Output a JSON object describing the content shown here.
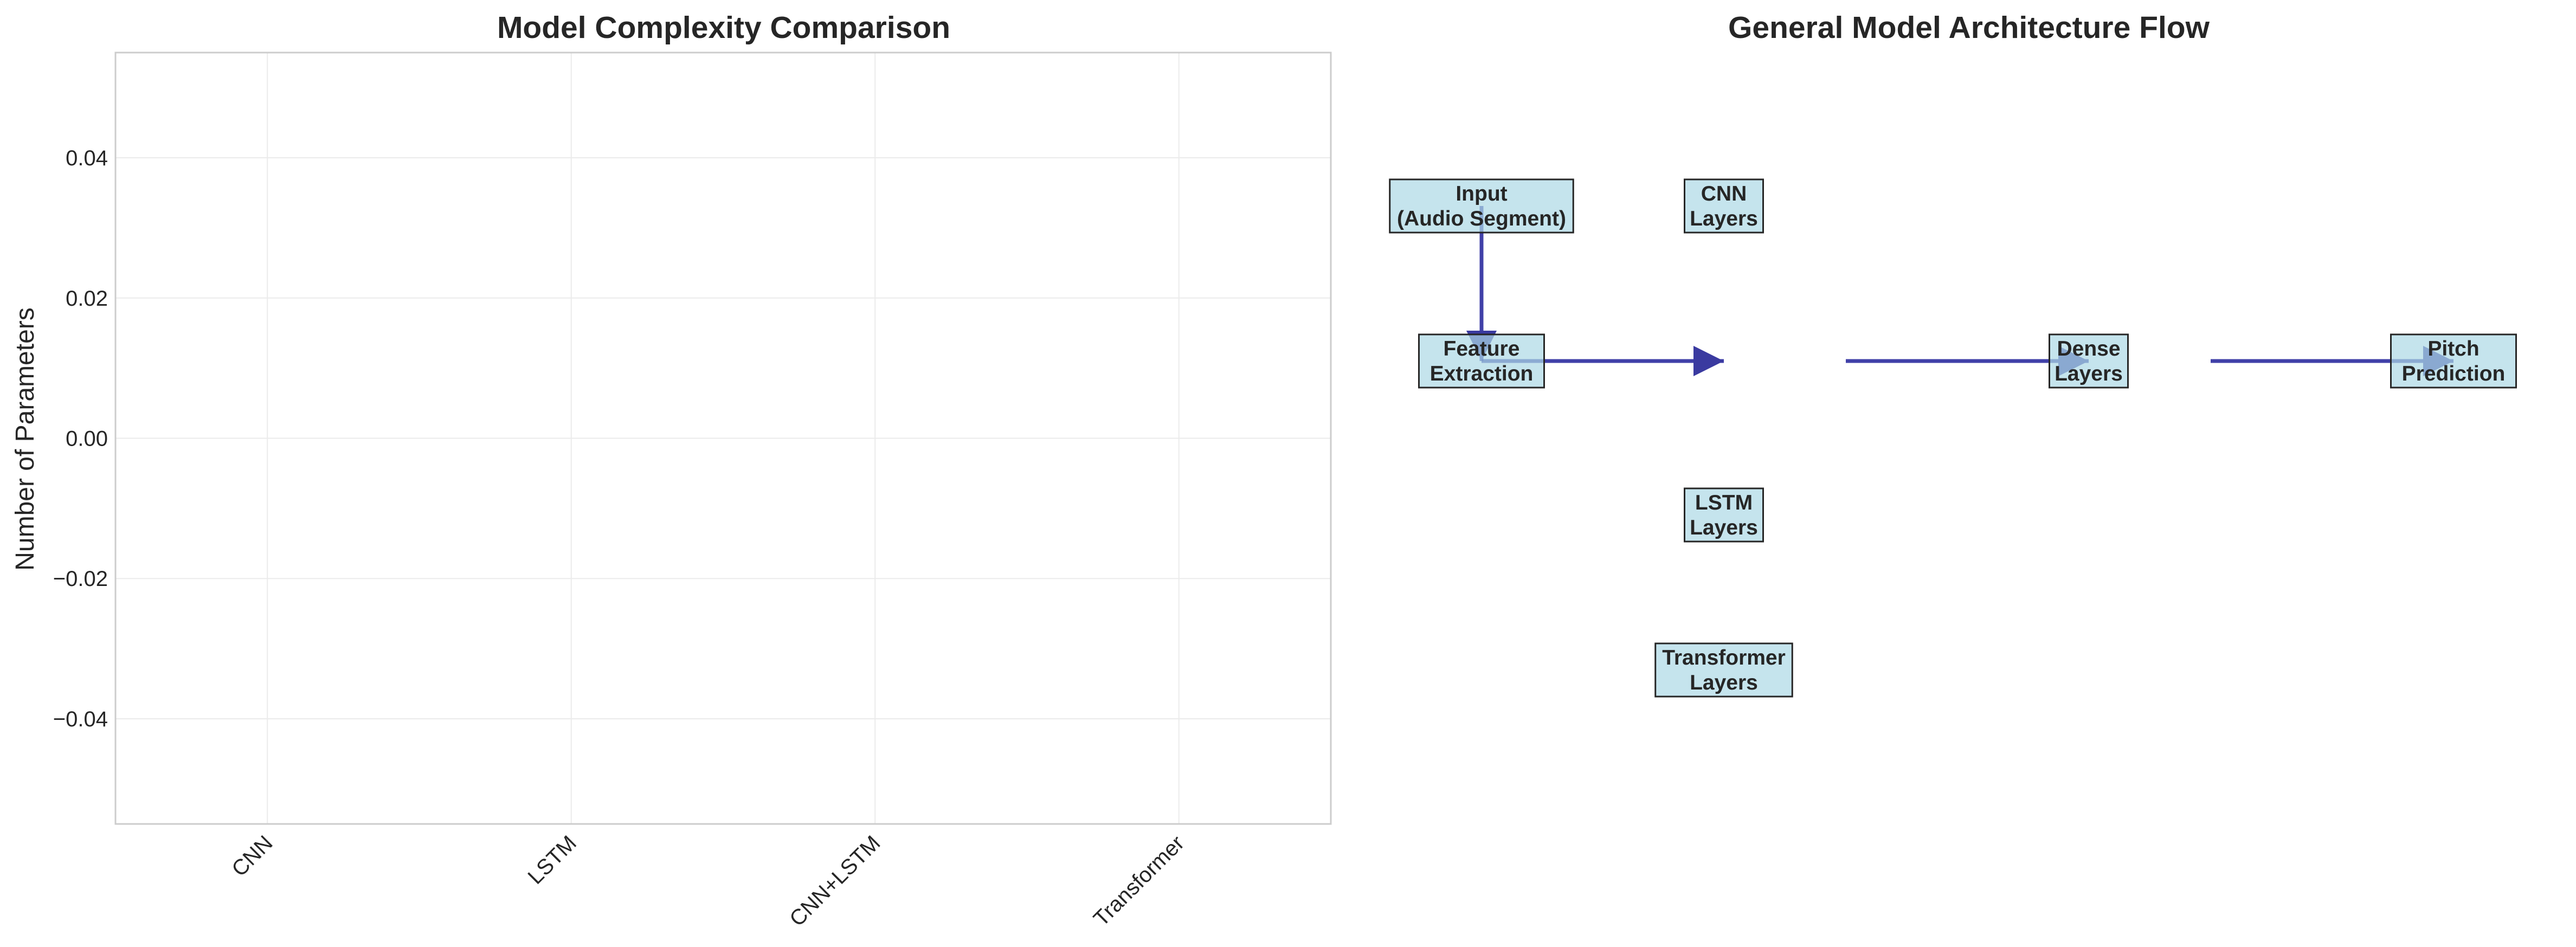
{
  "chart_data": [
    {
      "type": "bar",
      "title": "Model Complexity Comparison",
      "xlabel": "",
      "ylabel": "Number of Parameters",
      "categories": [
        "CNN",
        "LSTM",
        "CNN+LSTM",
        "Transformer"
      ],
      "values": [
        0,
        0,
        0,
        0
      ],
      "ylim": [
        -0.055,
        0.055
      ],
      "yticks": [
        -0.04,
        -0.02,
        0.0,
        0.02,
        0.04
      ],
      "ytick_labels": [
        "−0.04",
        "−0.02",
        "0.00",
        "0.02",
        "0.04"
      ],
      "grid": true
    },
    {
      "type": "diagram",
      "title": "General Model Architecture Flow",
      "nodes": [
        {
          "id": "input",
          "lines": [
            "Input",
            "(Audio Segment)"
          ]
        },
        {
          "id": "feature",
          "lines": [
            "Feature",
            "Extraction"
          ]
        },
        {
          "id": "cnn",
          "lines": [
            "CNN",
            "Layers"
          ]
        },
        {
          "id": "lstm",
          "lines": [
            "LSTM",
            "Layers"
          ]
        },
        {
          "id": "transformer",
          "lines": [
            "Transformer",
            "Layers"
          ]
        },
        {
          "id": "dense",
          "lines": [
            "Dense",
            "Layers"
          ]
        },
        {
          "id": "pitch",
          "lines": [
            "Pitch",
            "Prediction"
          ]
        }
      ],
      "edges": [
        {
          "from": "input",
          "to": "feature"
        },
        {
          "from": "feature",
          "to": "cnn"
        },
        {
          "from": "cnn",
          "to": "dense"
        },
        {
          "from": "dense",
          "to": "pitch"
        }
      ]
    }
  ],
  "colors": {
    "node_fill": "#add8e6",
    "node_edge": "#262626",
    "arrow": "#00008b",
    "grid": "#ebebeb",
    "spine": "#cccccc",
    "text": "#262626"
  }
}
